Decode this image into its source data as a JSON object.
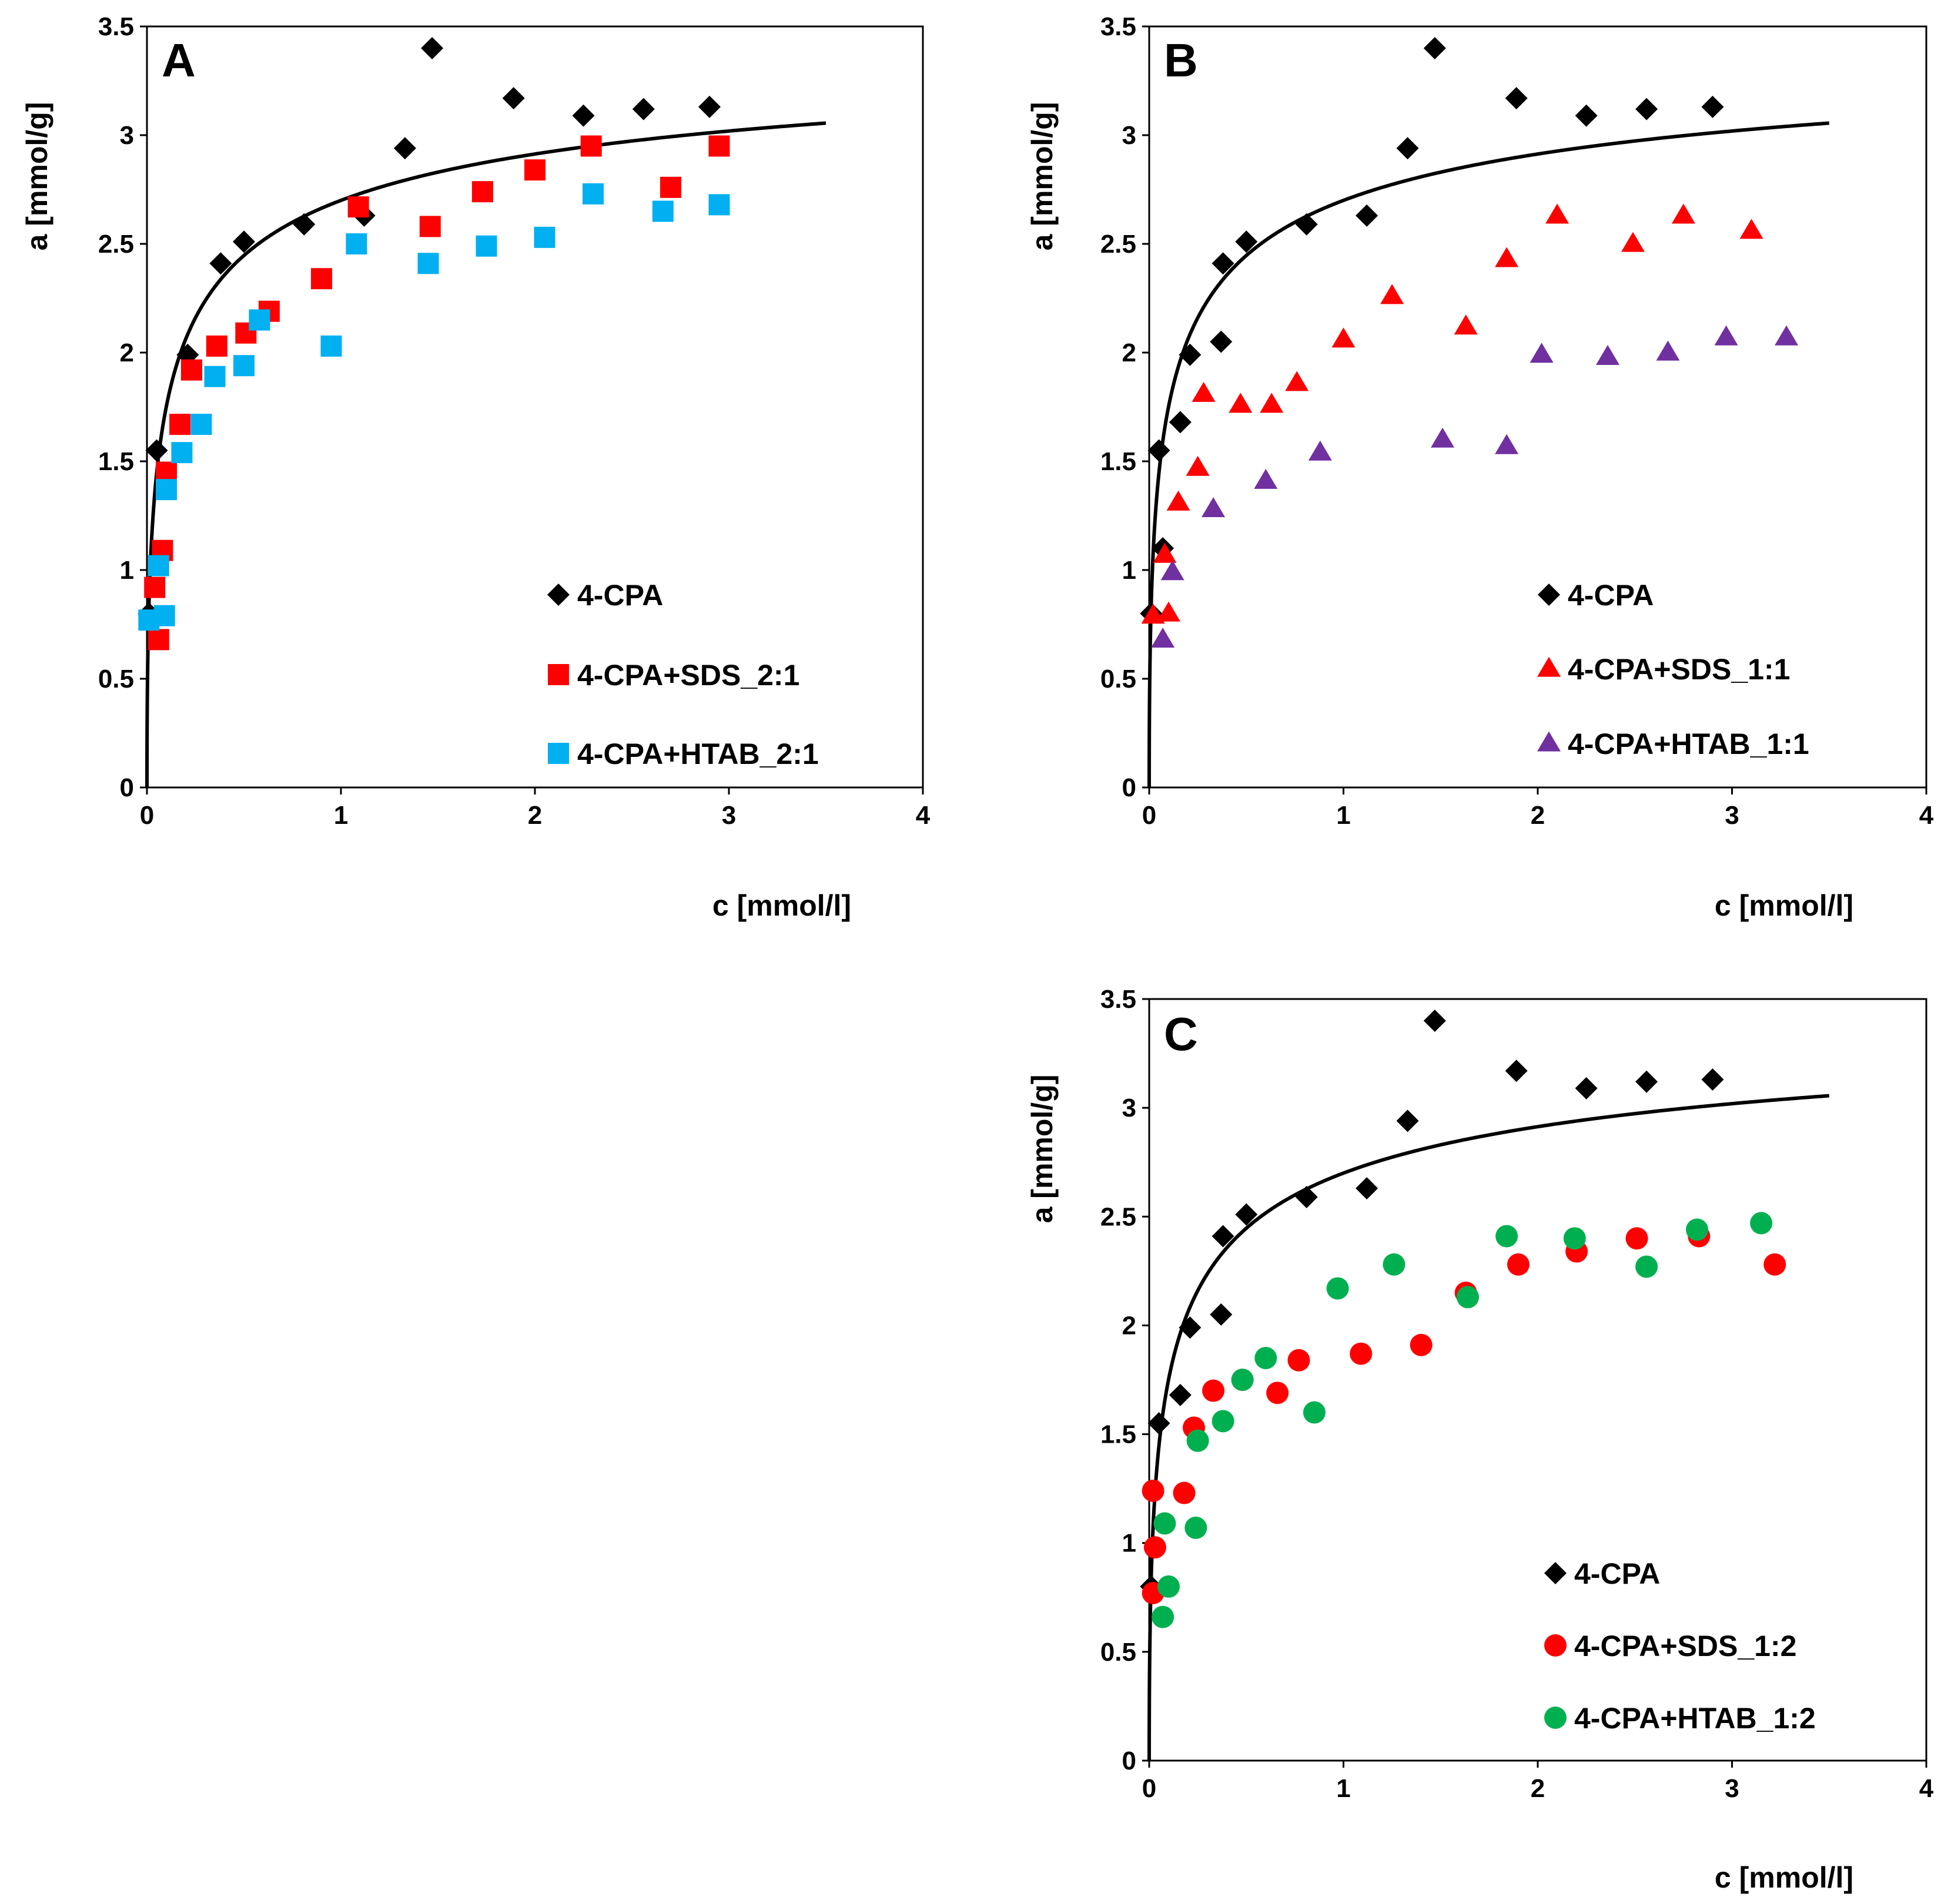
{
  "chart_data": [
    {
      "panel": "A",
      "type": "scatter",
      "xlabel": "c [mmol/l]",
      "ylabel": "a [mmol/g]",
      "xlim": [
        0,
        4
      ],
      "ylim": [
        0,
        3.5
      ],
      "xticks": [
        "0",
        "1",
        "2",
        "3",
        "4"
      ],
      "yticks": [
        "0",
        "0.5",
        "1",
        "1.5",
        "2",
        "2.5",
        "3",
        "3.5"
      ],
      "legend_position": "bottom-right",
      "fit_line": {
        "name": "4-CPA fit",
        "qmax": 3.6,
        "K": 3.0,
        "x_range": [
          0,
          3.5
        ]
      },
      "series": [
        {
          "name": "4-CPA",
          "marker": "diamond",
          "color": "#000000",
          "x": [
            0.01,
            0.05,
            0.21,
            0.38,
            0.5,
            0.81,
            1.12,
            1.33,
            1.47,
            1.89,
            2.25,
            2.56,
            2.9
          ],
          "y": [
            0.8,
            1.55,
            1.99,
            2.41,
            2.51,
            2.59,
            2.63,
            2.94,
            3.4,
            3.17,
            3.09,
            3.12,
            3.13
          ]
        },
        {
          "name": "4-CPA+SDS_2:1",
          "marker": "square",
          "color": "#ff0000",
          "x": [
            0.04,
            0.06,
            0.08,
            0.1,
            0.17,
            0.23,
            0.36,
            0.51,
            0.63,
            0.9,
            1.09,
            1.46,
            1.73,
            2.0,
            2.29,
            2.7,
            2.95
          ],
          "y": [
            0.92,
            0.68,
            1.09,
            1.45,
            1.67,
            1.92,
            2.03,
            2.09,
            2.19,
            2.34,
            2.67,
            2.58,
            2.74,
            2.84,
            2.95,
            2.76,
            2.95
          ]
        },
        {
          "name": "4-CPA+HTAB_2:1",
          "marker": "square",
          "color": "#00b0f0",
          "x": [
            0.01,
            0.06,
            0.09,
            0.1,
            0.18,
            0.28,
            0.35,
            0.5,
            0.58,
            0.95,
            1.08,
            1.45,
            1.75,
            2.05,
            2.3,
            2.66,
            2.95
          ],
          "y": [
            0.77,
            1.02,
            0.79,
            1.37,
            1.54,
            1.67,
            1.89,
            1.94,
            2.15,
            2.03,
            2.5,
            2.41,
            2.49,
            2.53,
            2.73,
            2.65,
            2.68
          ]
        }
      ]
    },
    {
      "panel": "B",
      "type": "scatter",
      "xlabel": "c [mmol/l]",
      "ylabel": "a [mmol/g]",
      "xlim": [
        0,
        4
      ],
      "ylim": [
        0,
        3.5
      ],
      "xticks": [
        "0",
        "1",
        "2",
        "3",
        "4"
      ],
      "yticks": [
        "0",
        "0.5",
        "1",
        "1.5",
        "2",
        "2.5",
        "3",
        "3.5"
      ],
      "legend_position": "bottom-right",
      "fit_line": {
        "name": "4-CPA fit",
        "qmax": 3.6,
        "K": 3.0,
        "x_range": [
          0,
          3.5
        ]
      },
      "series": [
        {
          "name": "4-CPA",
          "marker": "diamond",
          "color": "#000000",
          "x": [
            0.01,
            0.05,
            0.07,
            0.16,
            0.21,
            0.37,
            0.38,
            0.5,
            0.81,
            1.12,
            1.33,
            1.47,
            1.89,
            2.25,
            2.56,
            2.9
          ],
          "y": [
            0.8,
            1.55,
            1.1,
            1.68,
            1.99,
            2.05,
            2.41,
            2.51,
            2.59,
            2.63,
            2.94,
            3.4,
            3.17,
            3.09,
            3.12,
            3.13
          ]
        },
        {
          "name": "4-CPA+SDS_1:1",
          "marker": "triangle",
          "color": "#ff0000",
          "x": [
            0.02,
            0.08,
            0.1,
            0.15,
            0.25,
            0.28,
            0.47,
            0.63,
            0.76,
            1.0,
            1.25,
            1.63,
            1.84,
            2.1,
            2.49,
            2.75,
            3.1
          ],
          "y": [
            0.79,
            1.07,
            0.8,
            1.31,
            1.47,
            1.81,
            1.76,
            1.76,
            1.86,
            2.06,
            2.26,
            2.12,
            2.43,
            2.63,
            2.5,
            2.63,
            2.56
          ]
        },
        {
          "name": "4-CPA+HTAB_1:1",
          "marker": "triangle",
          "color": "#7030a0",
          "x": [
            0.07,
            0.12,
            0.33,
            0.6,
            0.88,
            1.51,
            1.84,
            2.02,
            2.36,
            2.67,
            2.97,
            3.28
          ],
          "y": [
            0.68,
            0.99,
            1.28,
            1.41,
            1.54,
            1.6,
            1.57,
            1.99,
            1.98,
            2.0,
            2.07,
            2.07
          ]
        }
      ]
    },
    {
      "panel": "C",
      "type": "scatter",
      "xlabel": "c [mmol/l]",
      "ylabel": "a [mmol/g]",
      "xlim": [
        0,
        4
      ],
      "ylim": [
        0,
        3.5
      ],
      "xticks": [
        "0",
        "1",
        "2",
        "3",
        "4"
      ],
      "yticks": [
        "0",
        "0.5",
        "1",
        "1.5",
        "2",
        "2.5",
        "3",
        "3.5"
      ],
      "legend_position": "bottom-right",
      "fit_line": {
        "name": "4-CPA fit",
        "qmax": 3.6,
        "K": 3.0,
        "x_range": [
          0,
          3.5
        ]
      },
      "series": [
        {
          "name": "4-CPA",
          "marker": "diamond",
          "color": "#000000",
          "x": [
            0.01,
            0.05,
            0.16,
            0.21,
            0.37,
            0.38,
            0.5,
            0.81,
            1.12,
            1.33,
            1.47,
            1.89,
            2.25,
            2.56,
            2.9
          ],
          "y": [
            0.8,
            1.55,
            1.68,
            1.99,
            2.05,
            2.41,
            2.51,
            2.59,
            2.63,
            2.94,
            3.4,
            3.17,
            3.09,
            3.12,
            3.13
          ]
        },
        {
          "name": "4-CPA+SDS_1:2",
          "marker": "circle",
          "color": "#ff0000",
          "x": [
            0.02,
            0.02,
            0.03,
            0.18,
            0.23,
            0.33,
            0.48,
            0.66,
            0.77,
            1.09,
            1.4,
            1.63,
            1.9,
            2.2,
            2.51,
            2.83,
            3.22
          ],
          "y": [
            0.77,
            1.24,
            0.98,
            1.23,
            1.53,
            1.7,
            1.75,
            1.69,
            1.84,
            1.87,
            1.91,
            2.15,
            2.28,
            2.34,
            2.4,
            2.41,
            2.28
          ]
        },
        {
          "name": "4-CPA+HTAB_1:2",
          "marker": "circle",
          "color": "#00b050",
          "x": [
            0.07,
            0.08,
            0.1,
            0.24,
            0.25,
            0.38,
            0.48,
            0.6,
            0.85,
            0.97,
            1.26,
            1.64,
            1.84,
            2.19,
            2.56,
            2.82,
            3.15
          ],
          "y": [
            0.66,
            1.09,
            0.8,
            1.07,
            1.47,
            1.56,
            1.75,
            1.85,
            1.6,
            2.17,
            2.28,
            2.13,
            2.41,
            2.4,
            2.27,
            2.44,
            2.47
          ]
        }
      ]
    }
  ]
}
